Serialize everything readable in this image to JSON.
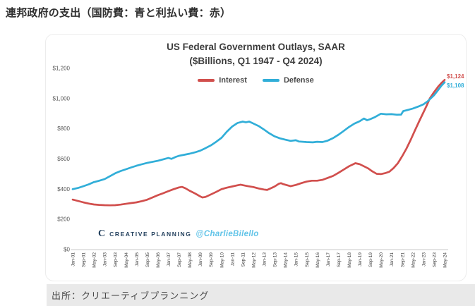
{
  "page": {
    "title": "連邦政府の支出（国防費：青と利払い費：赤）",
    "caption": "出所：クリエーティブプランニング"
  },
  "watermark": {
    "logo": "C",
    "brand": "CREATIVE PLANNING",
    "handle": "@CharlieBilello"
  },
  "chart_data": {
    "type": "line",
    "title": "US Federal Government Outlays, SAAR",
    "subtitle": "($Billions, Q1 1947 - Q4 2024)",
    "grid": false,
    "legend_position": "top-center",
    "ylim": [
      0,
      1200
    ],
    "y_ticks": [
      0,
      200,
      400,
      600,
      800,
      1000,
      1200
    ],
    "y_tick_labels": [
      "$0",
      "$200",
      "$400",
      "$600",
      "$800",
      "$1,000",
      "$1,200"
    ],
    "x_tick_labels": [
      "Jan-01",
      "Sep-01",
      "May-02",
      "Jan-03",
      "Sep-03",
      "May-04",
      "Jan-05",
      "Sep-05",
      "May-06",
      "Jan-07",
      "Sep-07",
      "May-08",
      "Jan-09",
      "Sep-09",
      "May-10",
      "Jan-11",
      "Sep-11",
      "May-12",
      "Jan-13",
      "Sep-13",
      "May-14",
      "Jan-15",
      "Sep-15",
      "May-16",
      "Jan-17",
      "Sep-17",
      "May-18",
      "Jan-19",
      "Sep-19",
      "May-20",
      "Jan-21",
      "Sep-21",
      "May-22",
      "Jan-23",
      "Sep-23",
      "May-24"
    ],
    "series": [
      {
        "name": "Interest",
        "color": "#d14f4d",
        "end_label": "$1,124",
        "end_value": 1124,
        "points": [
          [
            0,
            331
          ],
          [
            0.5,
            322
          ],
          [
            1,
            313
          ],
          [
            1.5,
            305
          ],
          [
            2,
            299
          ],
          [
            2.5,
            296
          ],
          [
            3,
            294
          ],
          [
            3.5,
            293
          ],
          [
            4,
            294
          ],
          [
            4.5,
            298
          ],
          [
            5,
            303
          ],
          [
            5.5,
            308
          ],
          [
            6,
            313
          ],
          [
            6.5,
            321
          ],
          [
            7,
            330
          ],
          [
            7.5,
            345
          ],
          [
            8,
            360
          ],
          [
            8.5,
            373
          ],
          [
            9,
            387
          ],
          [
            9.5,
            400
          ],
          [
            10,
            412
          ],
          [
            10.3,
            415
          ],
          [
            10.6,
            406
          ],
          [
            11,
            390
          ],
          [
            11.5,
            372
          ],
          [
            12,
            352
          ],
          [
            12.2,
            345
          ],
          [
            12.5,
            349
          ],
          [
            13,
            365
          ],
          [
            13.5,
            382
          ],
          [
            14,
            400
          ],
          [
            14.5,
            410
          ],
          [
            15,
            418
          ],
          [
            15.5,
            426
          ],
          [
            15.8,
            430
          ],
          [
            16.2,
            424
          ],
          [
            16.5,
            420
          ],
          [
            17,
            414
          ],
          [
            17.5,
            405
          ],
          [
            18,
            398
          ],
          [
            18.3,
            395
          ],
          [
            18.7,
            408
          ],
          [
            19,
            418
          ],
          [
            19.4,
            436
          ],
          [
            19.6,
            440
          ],
          [
            19.8,
            434
          ],
          [
            20,
            430
          ],
          [
            20.5,
            420
          ],
          [
            21,
            428
          ],
          [
            21.5,
            440
          ],
          [
            22,
            450
          ],
          [
            22.5,
            456
          ],
          [
            23,
            456
          ],
          [
            23.5,
            462
          ],
          [
            24,
            475
          ],
          [
            24.5,
            488
          ],
          [
            25,
            508
          ],
          [
            25.5,
            530
          ],
          [
            26,
            552
          ],
          [
            26.6,
            572
          ],
          [
            27,
            566
          ],
          [
            27.4,
            552
          ],
          [
            27.8,
            538
          ],
          [
            28.2,
            518
          ],
          [
            28.6,
            502
          ],
          [
            29,
            500
          ],
          [
            29.4,
            506
          ],
          [
            29.8,
            516
          ],
          [
            30.2,
            540
          ],
          [
            30.6,
            572
          ],
          [
            31,
            618
          ],
          [
            31.4,
            668
          ],
          [
            31.8,
            726
          ],
          [
            32.2,
            788
          ],
          [
            32.6,
            850
          ],
          [
            33,
            908
          ],
          [
            33.3,
            952
          ],
          [
            33.6,
            1000
          ],
          [
            34,
            1042
          ],
          [
            34.4,
            1080
          ],
          [
            34.7,
            1104
          ],
          [
            35,
            1124
          ]
        ]
      },
      {
        "name": "Defense",
        "color": "#31aed8",
        "end_label": "$1,108",
        "end_value": 1108,
        "points": [
          [
            0,
            400
          ],
          [
            0.5,
            408
          ],
          [
            1,
            420
          ],
          [
            1.5,
            432
          ],
          [
            2,
            447
          ],
          [
            2.5,
            456
          ],
          [
            3,
            467
          ],
          [
            3.5,
            486
          ],
          [
            4,
            505
          ],
          [
            4.5,
            520
          ],
          [
            5,
            532
          ],
          [
            5.5,
            544
          ],
          [
            6,
            555
          ],
          [
            6.5,
            565
          ],
          [
            7,
            574
          ],
          [
            7.5,
            581
          ],
          [
            8,
            588
          ],
          [
            8.5,
            597
          ],
          [
            9,
            607
          ],
          [
            9.3,
            601
          ],
          [
            9.7,
            614
          ],
          [
            10,
            621
          ],
          [
            10.5,
            628
          ],
          [
            11,
            635
          ],
          [
            11.5,
            644
          ],
          [
            12,
            655
          ],
          [
            12.5,
            672
          ],
          [
            13,
            690
          ],
          [
            13.5,
            714
          ],
          [
            14,
            740
          ],
          [
            14.5,
            780
          ],
          [
            15,
            815
          ],
          [
            15.5,
            838
          ],
          [
            16,
            848
          ],
          [
            16.3,
            843
          ],
          [
            16.6,
            848
          ],
          [
            17,
            835
          ],
          [
            17.5,
            818
          ],
          [
            18,
            795
          ],
          [
            18.5,
            770
          ],
          [
            19,
            750
          ],
          [
            19.5,
            737
          ],
          [
            20,
            728
          ],
          [
            20.5,
            720
          ],
          [
            21,
            724
          ],
          [
            21.3,
            716
          ],
          [
            22,
            712
          ],
          [
            22.6,
            710
          ],
          [
            23,
            714
          ],
          [
            23.5,
            712
          ],
          [
            24,
            722
          ],
          [
            24.5,
            738
          ],
          [
            25,
            760
          ],
          [
            25.5,
            786
          ],
          [
            26,
            812
          ],
          [
            26.5,
            834
          ],
          [
            27,
            850
          ],
          [
            27.4,
            868
          ],
          [
            27.7,
            857
          ],
          [
            28,
            864
          ],
          [
            28.4,
            876
          ],
          [
            28.8,
            892
          ],
          [
            29,
            900
          ],
          [
            29.5,
            896
          ],
          [
            30,
            897
          ],
          [
            30.5,
            893
          ],
          [
            30.9,
            894
          ],
          [
            31.1,
            917
          ],
          [
            31.5,
            924
          ],
          [
            32,
            934
          ],
          [
            32.5,
            947
          ],
          [
            33,
            962
          ],
          [
            33.4,
            982
          ],
          [
            34,
            1022
          ],
          [
            34.4,
            1058
          ],
          [
            34.7,
            1086
          ],
          [
            35,
            1108
          ]
        ]
      }
    ]
  }
}
